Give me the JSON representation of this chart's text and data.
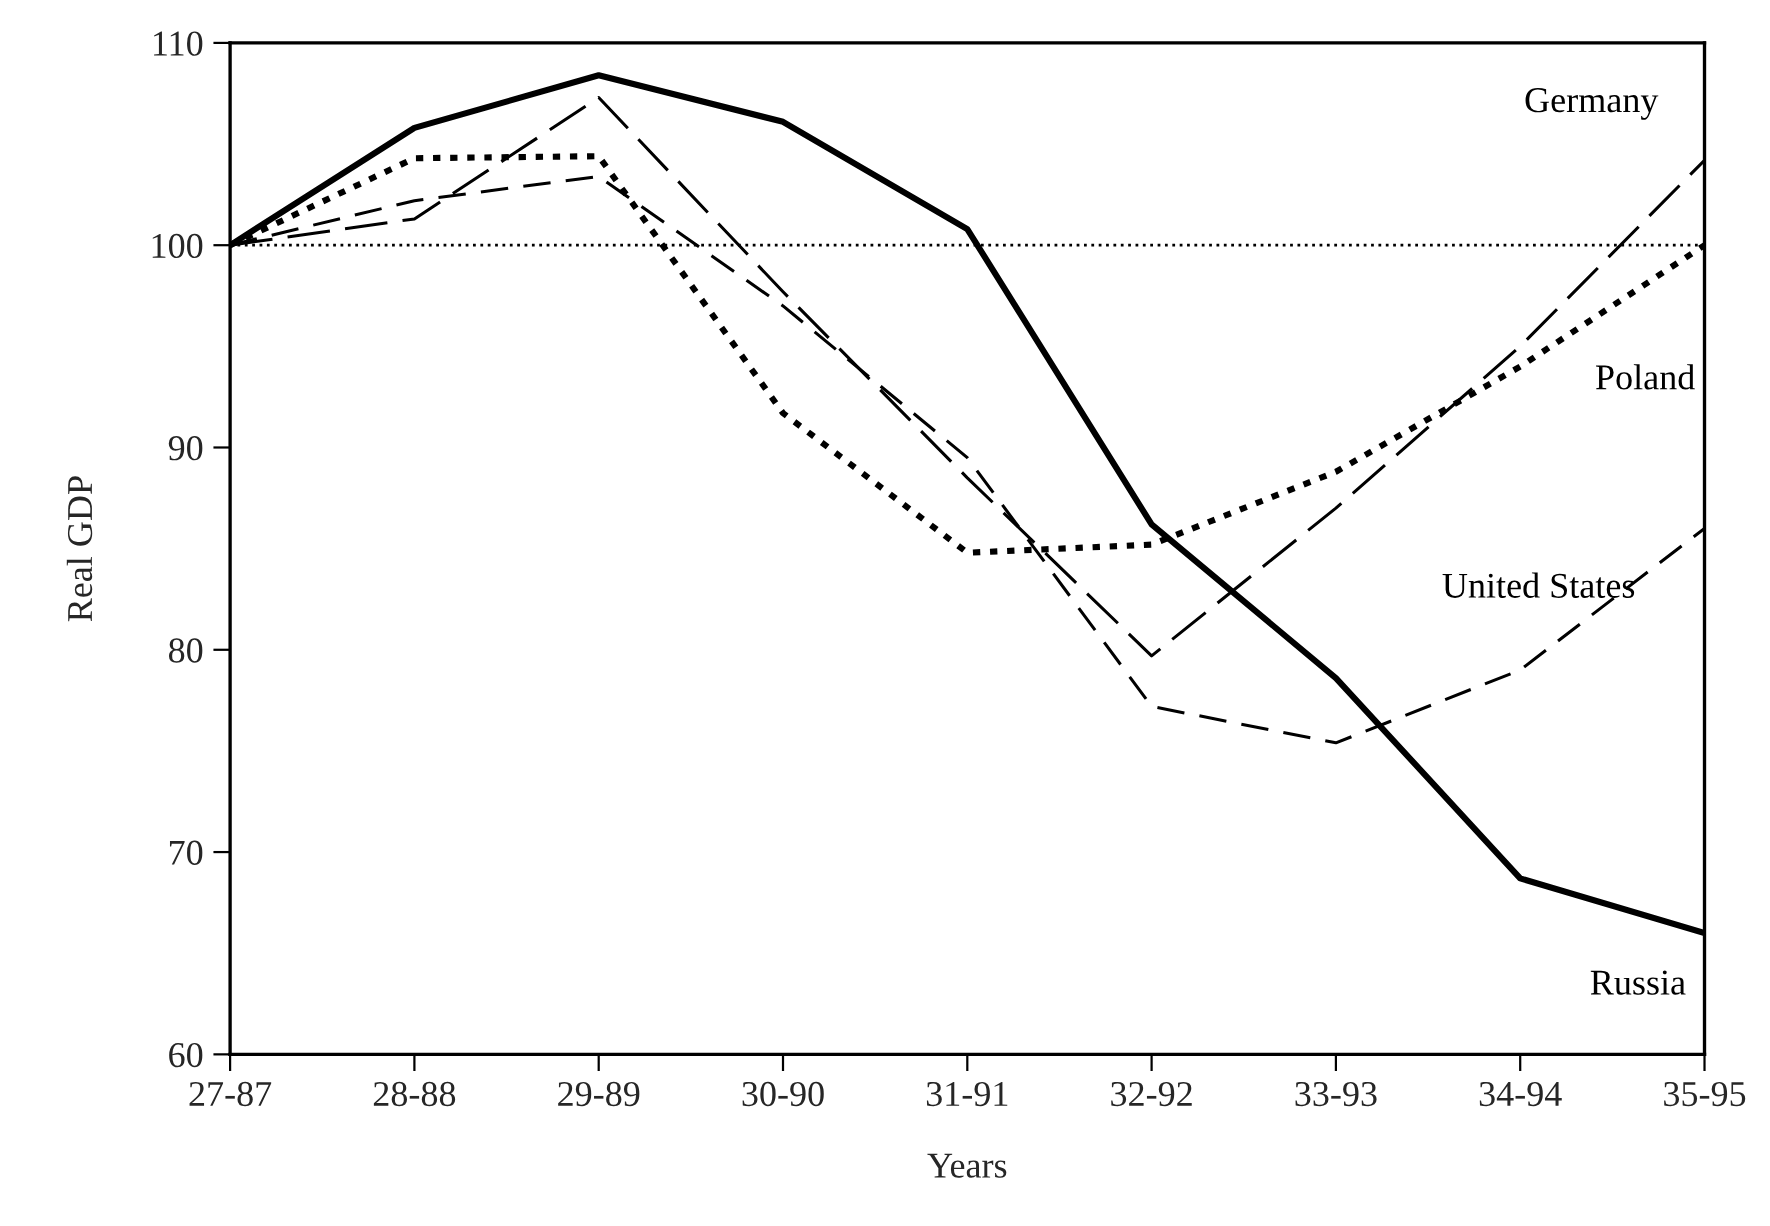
{
  "chart_data": {
    "type": "line",
    "xlabel": "Years",
    "ylabel": "Real GDP",
    "categories": [
      "27-87",
      "28-88",
      "29-89",
      "30-90",
      "31-91",
      "32-92",
      "33-93",
      "34-94",
      "35-95"
    ],
    "series": [
      {
        "name": "Russia",
        "color": "#000000",
        "line_style": "solid",
        "values": [
          100,
          105.8,
          108.4,
          106.1,
          100.8,
          86.2,
          78.6,
          68.7,
          66.0
        ]
      },
      {
        "name": "Poland",
        "color": "#000000",
        "line_style": "dotted",
        "values": [
          100,
          104.3,
          104.4,
          91.7,
          84.8,
          85.2,
          88.8,
          94.0,
          100.0
        ]
      },
      {
        "name": "Germany",
        "color": "#000000",
        "line_style": "dashed",
        "values": [
          100,
          101.3,
          107.3,
          97.7,
          88.5,
          79.7,
          87.0,
          95.0,
          104.2
        ]
      },
      {
        "name": "United States",
        "color": "#000000",
        "line_style": "dashed",
        "values": [
          100,
          102.2,
          103.4,
          97.0,
          89.5,
          77.2,
          75.4,
          79.0,
          86.0
        ]
      }
    ],
    "ylim": [
      60,
      110
    ],
    "yticks": [
      60,
      70,
      80,
      90,
      100,
      110
    ],
    "ref_lines": [
      {
        "axis": "y",
        "value": 100,
        "color": "#000000",
        "line_style": "dotted"
      }
    ],
    "grid": false,
    "legend": false,
    "marker": "none"
  }
}
